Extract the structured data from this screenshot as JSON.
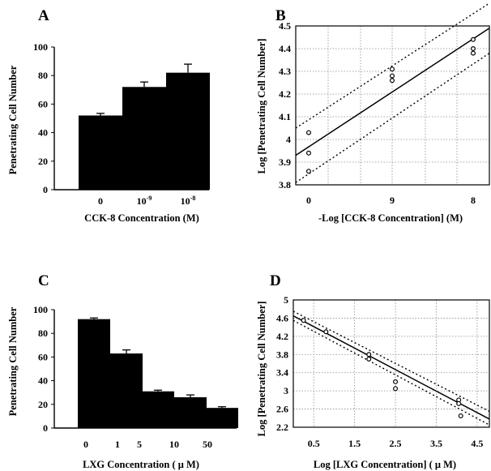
{
  "chart_data": [
    {
      "panel": "A",
      "type": "bar",
      "categories": [
        "0",
        "10-9",
        "10-8"
      ],
      "category_labels": [
        {
          "base": "0",
          "exp": ""
        },
        {
          "base": "10",
          "exp": "-9"
        },
        {
          "base": "10",
          "exp": "-8"
        }
      ],
      "values": [
        52,
        72,
        82
      ],
      "errors": [
        1.5,
        3.5,
        6
      ],
      "xlabel": "CCK-8  Concentration  (M)",
      "ylabel": "Penetrating Cell Number",
      "ylim": [
        0,
        100
      ],
      "yticks": [
        0,
        20,
        40,
        60,
        80,
        100
      ],
      "bar_color": "#000000"
    },
    {
      "panel": "B",
      "type": "scatter",
      "xlabel": "-Log [CCK-8  Concentration]  (M)",
      "ylabel": "Log [Penetrating Cell Number]",
      "ylim": [
        3.8,
        4.5
      ],
      "yticks": [
        3.8,
        3.9,
        4.0,
        4.1,
        4.2,
        4.3,
        4.4,
        4.5
      ],
      "ytick_labels": [
        "3.8",
        "3.9",
        "4",
        "4.1",
        "4.2",
        "4.3",
        "4.4",
        "4.5"
      ],
      "xticks": [
        "0",
        "9",
        "8"
      ],
      "grid": true,
      "points": [
        {
          "x": "0",
          "y": 4.03
        },
        {
          "x": "0",
          "y": 3.94
        },
        {
          "x": "0",
          "y": 3.86
        },
        {
          "x": "9",
          "y": 4.31
        },
        {
          "x": "9",
          "y": 4.28
        },
        {
          "x": "9",
          "y": 4.26
        },
        {
          "x": "8",
          "y": 4.44
        },
        {
          "x": "8",
          "y": 4.4
        },
        {
          "x": "8",
          "y": 4.38
        }
      ],
      "fit_line": {
        "start": 3.93,
        "end": 4.49
      },
      "confidence_upper": {
        "start": 4.05,
        "end": 4.6
      },
      "confidence_lower": {
        "start": 3.81,
        "end": 4.38
      }
    },
    {
      "panel": "C",
      "type": "bar",
      "categories": [
        "0",
        "1",
        "5",
        "10",
        "50"
      ],
      "values": [
        92,
        63,
        31,
        26,
        17
      ],
      "errors": [
        1,
        3,
        1,
        2,
        1
      ],
      "xlabel": "LXG  Concentration  ( μ M)",
      "ylabel": "Penetrating Cell Number",
      "ylim": [
        0,
        100
      ],
      "yticks": [
        0,
        20,
        40,
        60,
        80,
        100
      ],
      "bar_color": "#000000"
    },
    {
      "panel": "D",
      "type": "scatter",
      "xlabel": "Log [LXG  Concentration]  ( μ M)",
      "ylabel": "Log [Penetrating Cell Number]",
      "xlim": [
        0,
        4.8
      ],
      "ylim": [
        2.2,
        5.0
      ],
      "xticks": [
        0.5,
        1.5,
        2.5,
        3.5,
        4.5
      ],
      "xtick_labels": [
        "0.5",
        "1.5",
        "2.5",
        "3.5",
        "4.5"
      ],
      "yticks": [
        2.2,
        2.6,
        3.0,
        3.4,
        3.8,
        4.2,
        4.6,
        5.0
      ],
      "ytick_labels": [
        "2.2",
        "2.6",
        "3",
        "3.4",
        "3.8",
        "4.2",
        "4.6",
        "5"
      ],
      "grid": true,
      "points": [
        {
          "x": 0.25,
          "y": 4.55
        },
        {
          "x": 0.8,
          "y": 4.3
        },
        {
          "x": 1.85,
          "y": 3.8
        },
        {
          "x": 1.85,
          "y": 3.7
        },
        {
          "x": 2.5,
          "y": 3.2
        },
        {
          "x": 2.5,
          "y": 3.05
        },
        {
          "x": 4.05,
          "y": 2.8
        },
        {
          "x": 4.05,
          "y": 2.72
        },
        {
          "x": 4.1,
          "y": 2.45
        }
      ],
      "fit_line": {
        "x": [
          0,
          4.8
        ],
        "y": [
          4.65,
          2.38
        ]
      },
      "confidence_upper": {
        "x": [
          0,
          4.8
        ],
        "y": [
          4.75,
          2.55
        ]
      },
      "confidence_lower": {
        "x": [
          0,
          4.8
        ],
        "y": [
          4.55,
          2.25
        ]
      }
    }
  ],
  "panel_labels": [
    "A",
    "B",
    "C",
    "D"
  ],
  "colors": {
    "ink": "#000000",
    "grid": "#8c8c8c",
    "background": "#ffffff"
  }
}
